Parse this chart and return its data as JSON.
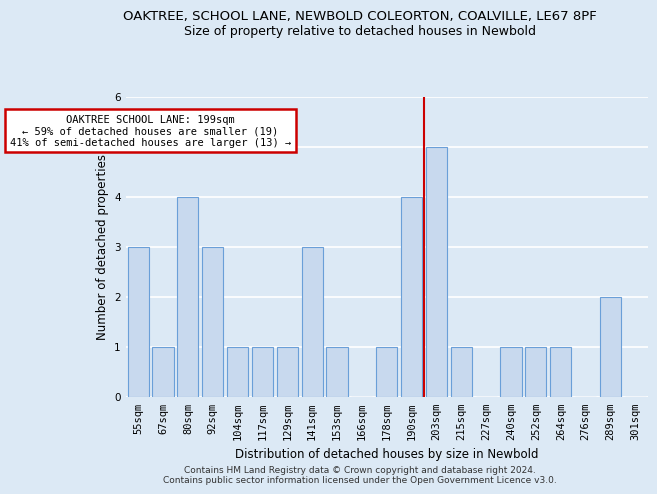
{
  "title1": "OAKTREE, SCHOOL LANE, NEWBOLD COLEORTON, COALVILLE, LE67 8PF",
  "title2": "Size of property relative to detached houses in Newbold",
  "xlabel": "Distribution of detached houses by size in Newbold",
  "ylabel": "Number of detached properties",
  "categories": [
    "55sqm",
    "67sqm",
    "80sqm",
    "92sqm",
    "104sqm",
    "117sqm",
    "129sqm",
    "141sqm",
    "153sqm",
    "166sqm",
    "178sqm",
    "190sqm",
    "203sqm",
    "215sqm",
    "227sqm",
    "240sqm",
    "252sqm",
    "264sqm",
    "276sqm",
    "289sqm",
    "301sqm"
  ],
  "values": [
    3,
    1,
    4,
    3,
    1,
    1,
    1,
    3,
    1,
    0,
    1,
    4,
    5,
    1,
    0,
    1,
    1,
    1,
    0,
    2,
    0
  ],
  "bar_color": "#c8d9ee",
  "bar_edge_color": "#6a9fd8",
  "highlight_index": 11,
  "red_line_color": "#cc0000",
  "annotation_title": "OAKTREE SCHOOL LANE: 199sqm",
  "annotation_line1": "← 59% of detached houses are smaller (19)",
  "annotation_line2": "41% of semi-detached houses are larger (13) →",
  "annotation_box_color": "#ffffff",
  "annotation_box_edge": "#cc0000",
  "ylim": [
    0,
    6
  ],
  "yticks": [
    0,
    1,
    2,
    3,
    4,
    5,
    6
  ],
  "footer": "Contains HM Land Registry data © Crown copyright and database right 2024.\nContains public sector information licensed under the Open Government Licence v3.0.",
  "bg_color": "#dce9f5",
  "plot_bg_color": "#dce9f5",
  "grid_color": "#ffffff",
  "title1_fontsize": 9.5,
  "title2_fontsize": 9,
  "axis_label_fontsize": 8.5,
  "tick_fontsize": 7.5,
  "footer_fontsize": 6.5
}
